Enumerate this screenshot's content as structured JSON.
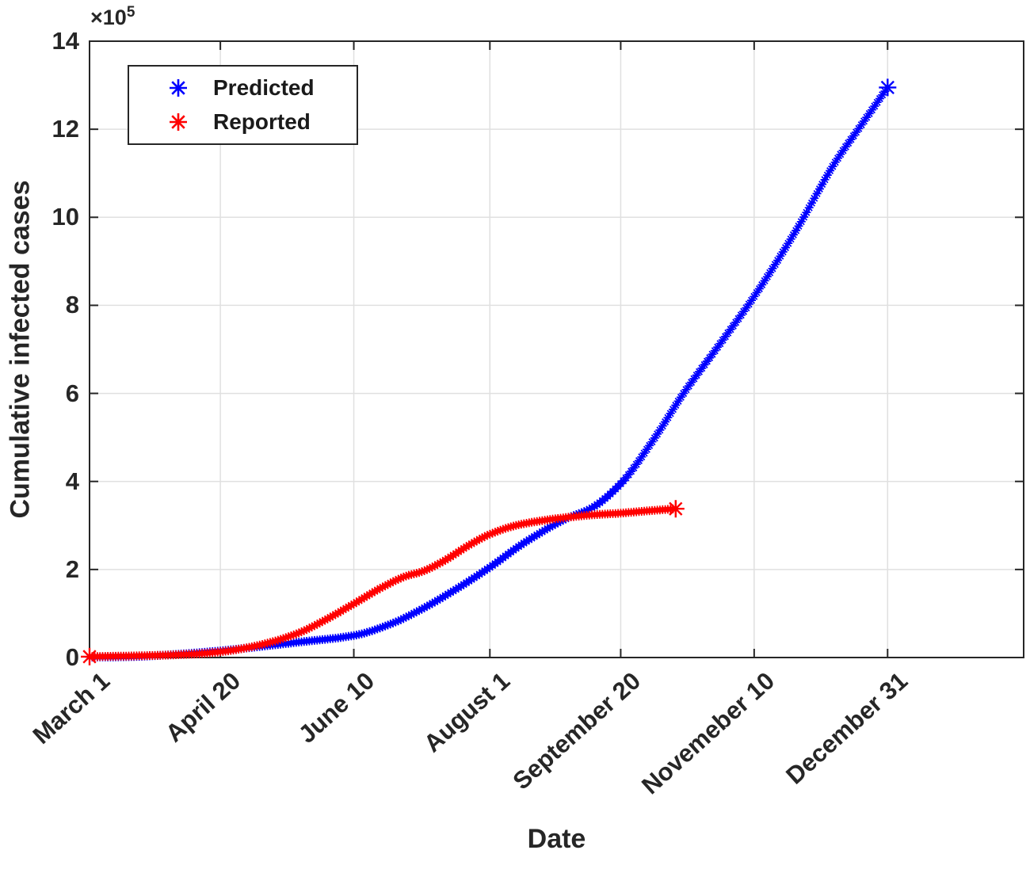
{
  "figure": {
    "background": "#ffffff"
  },
  "chart_data": {
    "type": "scatter",
    "title": "",
    "xlabel": "Date",
    "ylabel": "Cumulative infected cases",
    "y_axis_multiplier": {
      "base": "×10",
      "exp": "5"
    },
    "x_tick_labels": [
      "March 1",
      "April 20",
      "June 10",
      "August 1",
      "September 20",
      "Novemeber 10",
      "December 31"
    ],
    "x_tick_days": [
      0,
      50,
      101,
      153,
      203,
      254,
      305
    ],
    "y_tick_labels": [
      "0",
      "2",
      "4",
      "6",
      "8",
      "10",
      "12",
      "14"
    ],
    "y_ticks": [
      0,
      2,
      4,
      6,
      8,
      10,
      12,
      14
    ],
    "ylim": [
      0,
      14
    ],
    "xlim_days": [
      0,
      357
    ],
    "y_unit": "cases × 10^5",
    "grid": true,
    "axis_color": "#262626",
    "grid_color": "#e0e0e0",
    "marker_style": "asterisk",
    "legend": {
      "position": "top-left-inside",
      "entries": [
        {
          "label": "Predicted",
          "color": "#0000ff"
        },
        {
          "label": "Reported",
          "color": "#ff0000"
        }
      ]
    },
    "series": [
      {
        "name": "Predicted",
        "color": "#0000ff",
        "marker": "asterisk",
        "marker_interval_days": 1,
        "start_day": 0,
        "end_day": 305,
        "endpoint_emphasis": [
          "end"
        ],
        "control_points_day_value_1e5": [
          [
            0,
            0.01
          ],
          [
            15,
            0.02
          ],
          [
            30,
            0.06
          ],
          [
            50,
            0.15
          ],
          [
            65,
            0.25
          ],
          [
            80,
            0.35
          ],
          [
            101,
            0.5
          ],
          [
            115,
            0.76
          ],
          [
            127,
            1.1
          ],
          [
            140,
            1.55
          ],
          [
            153,
            2.05
          ],
          [
            166,
            2.6
          ],
          [
            182,
            3.15
          ],
          [
            192,
            3.4
          ],
          [
            203,
            3.95
          ],
          [
            215,
            4.9
          ],
          [
            227,
            6.0
          ],
          [
            240,
            7.05
          ],
          [
            254,
            8.2
          ],
          [
            270,
            9.7
          ],
          [
            285,
            11.25
          ],
          [
            295,
            12.1
          ],
          [
            305,
            12.95
          ]
        ]
      },
      {
        "name": "Reported",
        "color": "#ff0000",
        "marker": "asterisk",
        "marker_interval_days": 1,
        "start_day": 0,
        "end_day": 224,
        "endpoint_emphasis": [
          "start",
          "end"
        ],
        "control_points_day_value_1e5": [
          [
            0,
            0.02
          ],
          [
            20,
            0.04
          ],
          [
            40,
            0.08
          ],
          [
            50,
            0.13
          ],
          [
            60,
            0.22
          ],
          [
            70,
            0.36
          ],
          [
            80,
            0.56
          ],
          [
            90,
            0.85
          ],
          [
            101,
            1.22
          ],
          [
            112,
            1.6
          ],
          [
            121,
            1.85
          ],
          [
            127,
            1.95
          ],
          [
            135,
            2.18
          ],
          [
            145,
            2.55
          ],
          [
            153,
            2.8
          ],
          [
            163,
            3.0
          ],
          [
            172,
            3.1
          ],
          [
            182,
            3.18
          ],
          [
            192,
            3.24
          ],
          [
            203,
            3.28
          ],
          [
            213,
            3.33
          ],
          [
            224,
            3.38
          ]
        ]
      }
    ]
  }
}
